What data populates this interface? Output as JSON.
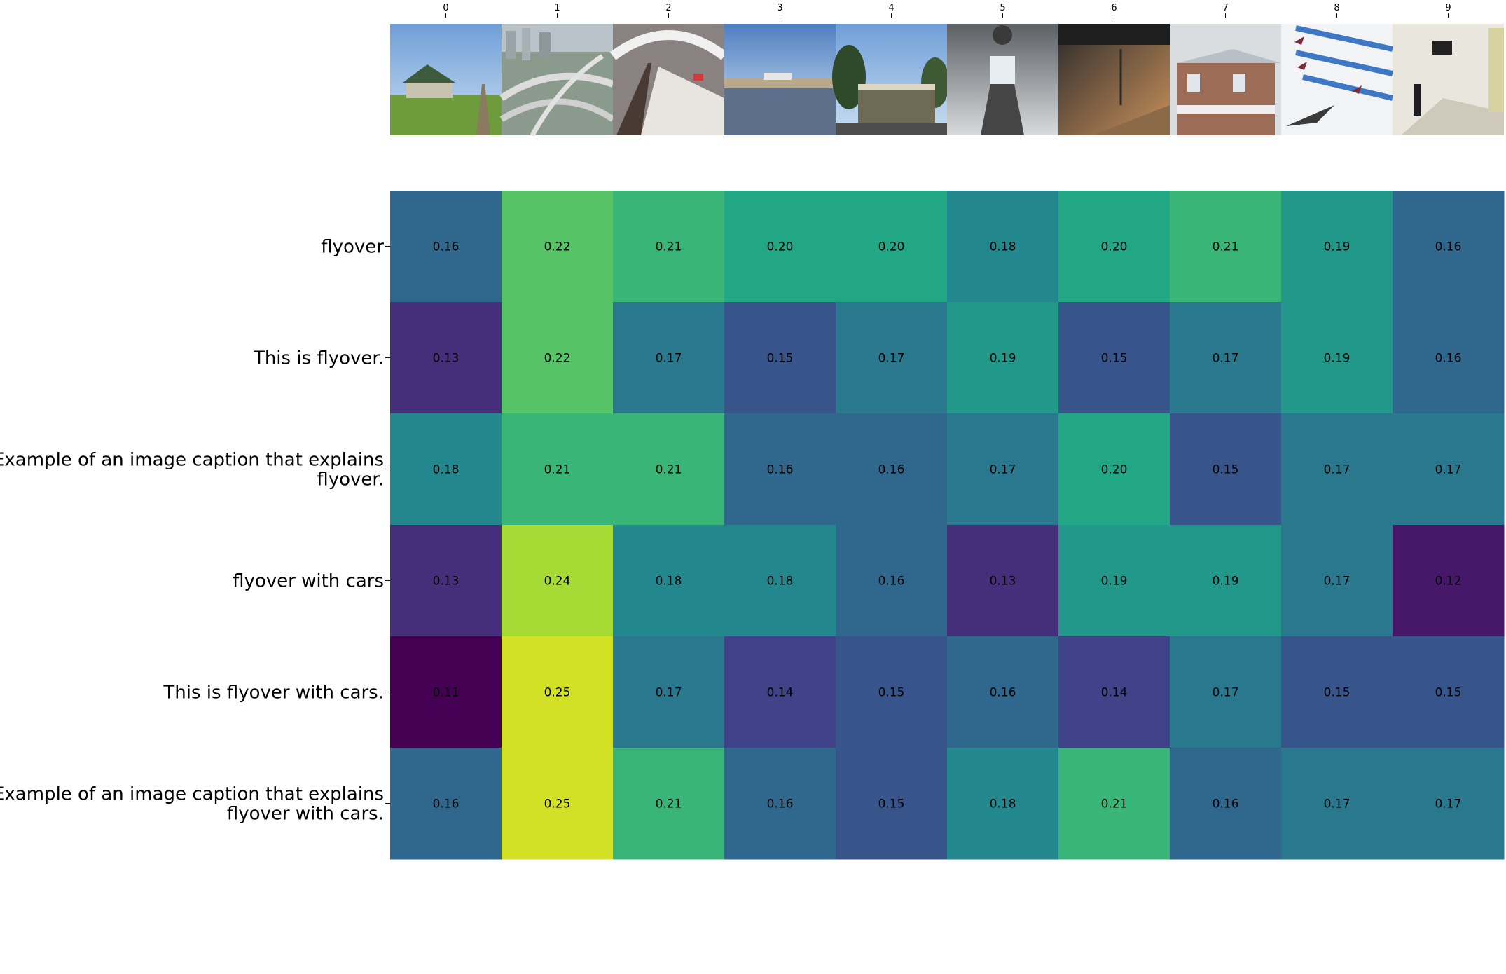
{
  "chart_data": {
    "type": "heatmap",
    "title": "",
    "xlabel": "",
    "ylabel": "",
    "x_tick_labels": [
      "0",
      "1",
      "2",
      "3",
      "4",
      "5",
      "6",
      "7",
      "8",
      "9"
    ],
    "y_tick_labels": [
      "flyover",
      "This is flyover.",
      "Example of an image caption that explains flyover.",
      "flyover with cars",
      "This is flyover with cars.",
      "Example of an image caption that explains flyover with cars."
    ],
    "y_tick_label_lines": [
      [
        "flyover"
      ],
      [
        "This is flyover."
      ],
      [
        "Example of an image caption that explains",
        "flyover."
      ],
      [
        "flyover with cars"
      ],
      [
        "This is flyover with cars."
      ],
      [
        "Example of an image caption that explains",
        "flyover with cars."
      ]
    ],
    "values": [
      [
        0.16,
        0.22,
        0.21,
        0.2,
        0.2,
        0.18,
        0.2,
        0.21,
        0.19,
        0.16
      ],
      [
        0.13,
        0.22,
        0.17,
        0.15,
        0.17,
        0.19,
        0.15,
        0.17,
        0.19,
        0.16
      ],
      [
        0.18,
        0.21,
        0.21,
        0.16,
        0.16,
        0.17,
        0.2,
        0.15,
        0.17,
        0.17
      ],
      [
        0.13,
        0.24,
        0.18,
        0.18,
        0.16,
        0.13,
        0.19,
        0.19,
        0.17,
        0.12
      ],
      [
        0.11,
        0.25,
        0.17,
        0.14,
        0.15,
        0.16,
        0.14,
        0.17,
        0.15,
        0.15
      ],
      [
        0.16,
        0.25,
        0.21,
        0.16,
        0.15,
        0.18,
        0.21,
        0.16,
        0.17,
        0.17
      ]
    ],
    "value_range": [
      0.11,
      0.26
    ],
    "colormap": "viridis",
    "grid": false,
    "legend": "none",
    "header_images": [
      "rural train station building with grass and track",
      "aerial view of highway flyover interchange in city",
      "interior of railway station with platforms",
      "waterfront with buildings under cloudy sky",
      "two-story station building with trees",
      "escalator inside station looking upward",
      "railway platform in warm evening light",
      "modern brick station building with signage",
      "jet aircraft flying in formation with smoke trails",
      "subway station concourse with person walking"
    ]
  }
}
